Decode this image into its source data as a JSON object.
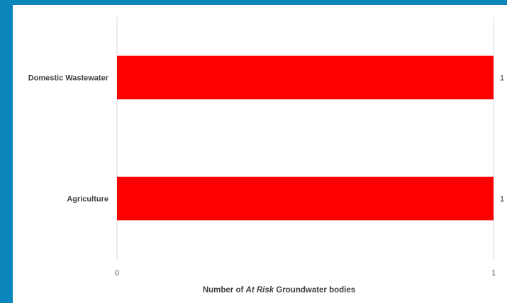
{
  "chart_data": {
    "type": "bar",
    "orientation": "horizontal",
    "categories": [
      "Domestic Wastewater",
      "Agriculture"
    ],
    "values": [
      1,
      1
    ],
    "xlim": [
      0,
      1
    ],
    "x_ticks": [
      "0",
      "1"
    ],
    "data_labels": [
      "1",
      "1"
    ],
    "xlabel_parts": {
      "before": "Number of ",
      "italic": "At Risk",
      "after": " Groundwater bodies"
    },
    "bar_color": "#ff0000",
    "grid": true,
    "legend": "none"
  },
  "colors": {
    "frame": "#0b86bd",
    "background": "#ffffff",
    "gridline": "#d9d9d9"
  }
}
